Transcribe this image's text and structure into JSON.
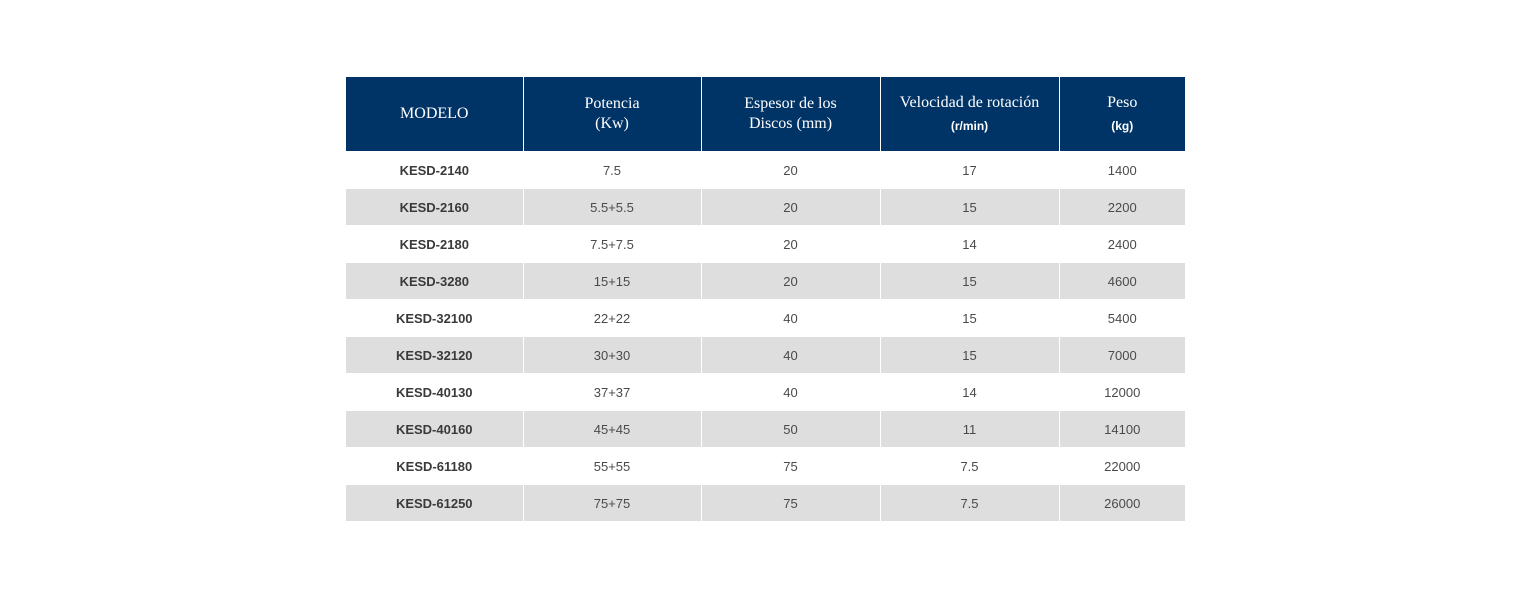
{
  "table": {
    "headers": [
      {
        "lines": [
          "MODELO"
        ],
        "unit": ""
      },
      {
        "lines": [
          "Potencia",
          "(Kw)"
        ],
        "unit": ""
      },
      {
        "lines": [
          "Espesor de los",
          "Discos (mm)"
        ],
        "unit": ""
      },
      {
        "lines": [
          "Velocidad de rotación"
        ],
        "unit": "(r/min)"
      },
      {
        "lines": [
          "Peso"
        ],
        "unit": "(kg)"
      }
    ],
    "rows": [
      [
        "KESD-2140",
        "7.5",
        "20",
        "17",
        "1400"
      ],
      [
        "KESD-2160",
        "5.5+5.5",
        "20",
        "15",
        "2200"
      ],
      [
        "KESD-2180",
        "7.5+7.5",
        "20",
        "14",
        "2400"
      ],
      [
        "KESD-3280",
        "15+15",
        "20",
        "15",
        "4600"
      ],
      [
        "KESD-32100",
        "22+22",
        "40",
        "15",
        "5400"
      ],
      [
        "KESD-32120",
        "30+30",
        "40",
        "15",
        "7000"
      ],
      [
        "KESD-40130",
        "37+37",
        "40",
        "14",
        "12000"
      ],
      [
        "KESD-40160",
        "45+45",
        "50",
        "11",
        "14100"
      ],
      [
        "KESD-61180",
        "55+55",
        "75",
        "7.5",
        "22000"
      ],
      [
        "KESD-61250",
        "75+75",
        "75",
        "7.5",
        "26000"
      ]
    ]
  },
  "colors": {
    "header_bg": "#003366",
    "header_text": "#ffffff",
    "row_alt_bg": "#dedede",
    "cell_text": "#4a4a4a"
  }
}
